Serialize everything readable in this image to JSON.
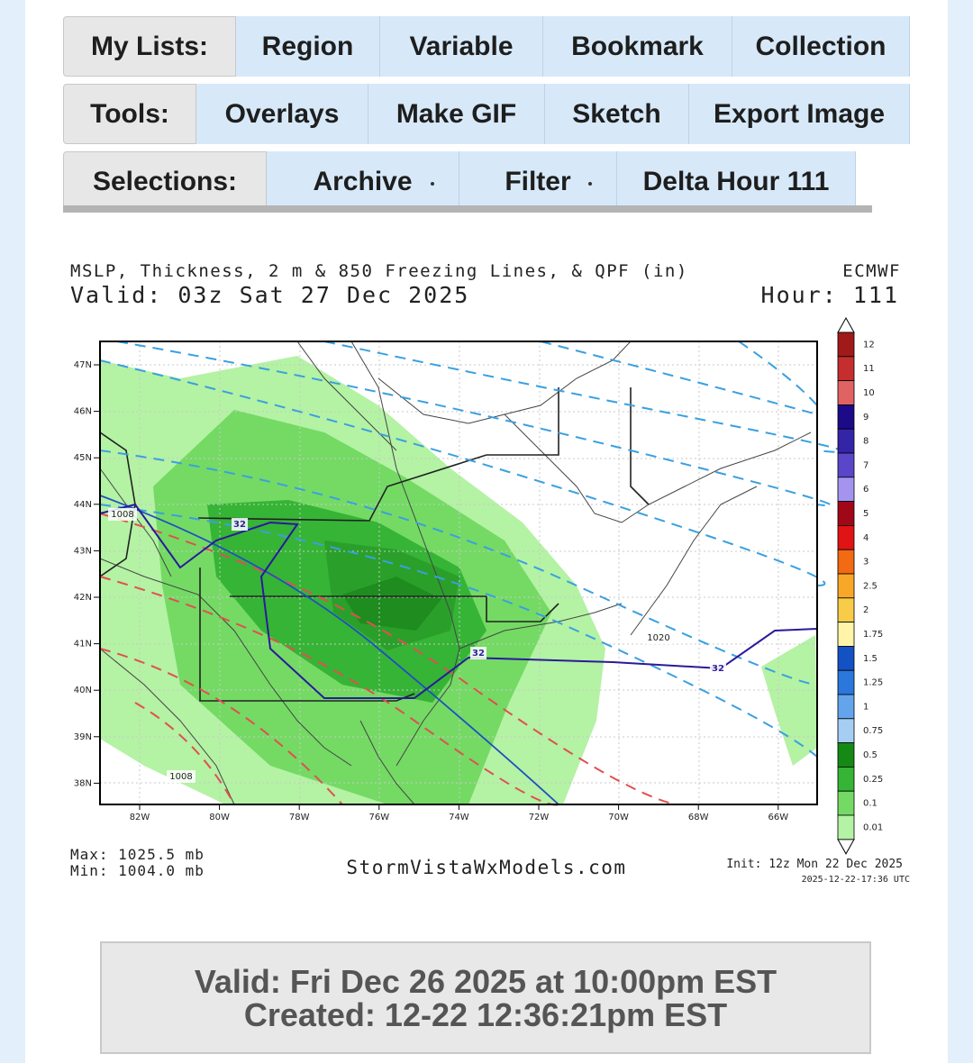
{
  "nav": {
    "rows": [
      {
        "label": "My Lists:",
        "items": [
          "Region",
          "Variable",
          "Bookmark",
          "Collection"
        ]
      },
      {
        "label": "Tools:",
        "items": [
          "Overlays",
          "Make GIF",
          "Sketch",
          "Export Image"
        ]
      },
      {
        "label": "Selections:",
        "items": [
          "Archive",
          "Filter",
          "Delta Hour 111"
        ]
      }
    ]
  },
  "map": {
    "title": "MSLP, Thickness, 2 m & 850 Freezing Lines, & QPF (in)",
    "model": "ECMWF",
    "valid": "Valid: 03z Sat 27 Dec 2025",
    "hour": "Hour: 111",
    "lat_labels": [
      "47N",
      "46N",
      "45N",
      "44N",
      "43N",
      "42N",
      "41N",
      "40N",
      "39N",
      "38N"
    ],
    "lon_labels": [
      "82W",
      "80W",
      "78W",
      "76W",
      "74W",
      "72W",
      "70W",
      "68W",
      "66W"
    ],
    "colorbar": [
      {
        "label": "12",
        "color": "#a11a1a"
      },
      {
        "label": "11",
        "color": "#c42e2e"
      },
      {
        "label": "10",
        "color": "#e06262"
      },
      {
        "label": "9",
        "color": "#1c0a88"
      },
      {
        "label": "8",
        "color": "#3424a8"
      },
      {
        "label": "7",
        "color": "#5a46c8"
      },
      {
        "label": "6",
        "color": "#a494f0"
      },
      {
        "label": "5",
        "color": "#a00818"
      },
      {
        "label": "4",
        "color": "#e01414"
      },
      {
        "label": "3",
        "color": "#f26a12"
      },
      {
        "label": "2.5",
        "color": "#f8a828"
      },
      {
        "label": "2",
        "color": "#f8cc48"
      },
      {
        "label": "1.75",
        "color": "#fff4a8"
      },
      {
        "label": "1.5",
        "color": "#1452c4"
      },
      {
        "label": "1.25",
        "color": "#2a78dc"
      },
      {
        "label": "1",
        "color": "#64a4ec"
      },
      {
        "label": "0.75",
        "color": "#a6cdf2"
      },
      {
        "label": "0.5",
        "color": "#148a14"
      },
      {
        "label": "0.25",
        "color": "#36b436"
      },
      {
        "label": "0.1",
        "color": "#74da64"
      },
      {
        "label": "0.01",
        "color": "#b4f2a4"
      }
    ],
    "contour_labels": [
      "32",
      "32",
      "32",
      "1020",
      "1008",
      "1008"
    ],
    "max": "Max: 1025.5 mb",
    "min": "Min: 1004.0 mb",
    "site": "StormVistaWxModels.com",
    "init": "Init: 12z Mon 22 Dec 2025",
    "stamp": "2025-12-22-17:36 UTC"
  },
  "footer": {
    "valid": "Valid: Fri Dec 26 2025 at 10:00pm EST",
    "created": "Created: 12-22 12:36:21pm EST"
  }
}
